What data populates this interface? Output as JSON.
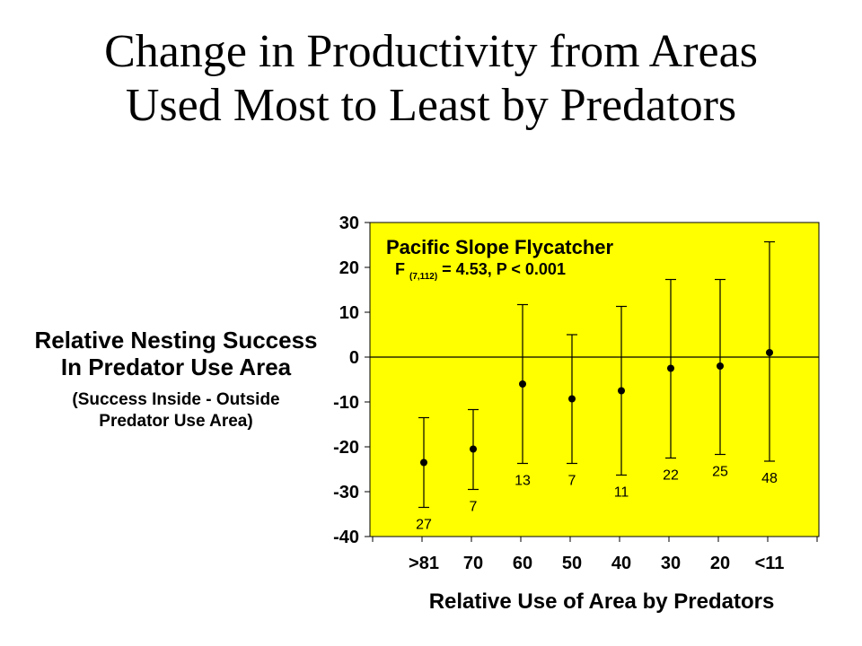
{
  "slide": {
    "title_line1": "Change in Productivity from Areas",
    "title_line2": "Used Most to Least by Predators"
  },
  "chart_data": {
    "type": "scatter",
    "title": "Pacific Slope Flycatcher",
    "stat_prefix": "F",
    "stat_subscript": "(7,112)",
    "stat_suffix": "= 4.53, P < 0.001",
    "ylabel": "Relative Nesting Success In Predator Use Area",
    "ylabel_line1": "Relative Nesting Success",
    "ylabel_line2": "In Predator Use Area",
    "ylabel_sub1": "(Success Inside - Outside",
    "ylabel_sub2": "Predator Use Area)",
    "xlabel": "Relative Use of Area by Predators",
    "categories": [
      ">81",
      "70",
      "60",
      "50",
      "40",
      "30",
      "20",
      "<11"
    ],
    "values": [
      -23.5,
      -20.5,
      -6,
      -9.3,
      -7.5,
      -2.5,
      -2,
      1
    ],
    "error_upper": [
      -13.5,
      -11.7,
      11.7,
      5,
      11.3,
      17.3,
      17.3,
      25.7
    ],
    "error_lower": [
      -33.5,
      -29.5,
      -23.7,
      -23.7,
      -26.3,
      -22.5,
      -21.7,
      -23.2
    ],
    "sample_sizes": [
      "27",
      "7",
      "13",
      "7",
      "11",
      "22",
      "25",
      "48"
    ],
    "ylim": [
      -40,
      30
    ],
    "yticks": [
      "30",
      "20",
      "10",
      "0",
      "-10",
      "-20",
      "-30",
      "-40"
    ],
    "zero_line": true,
    "background_color": "#ffff00",
    "grid": false
  }
}
